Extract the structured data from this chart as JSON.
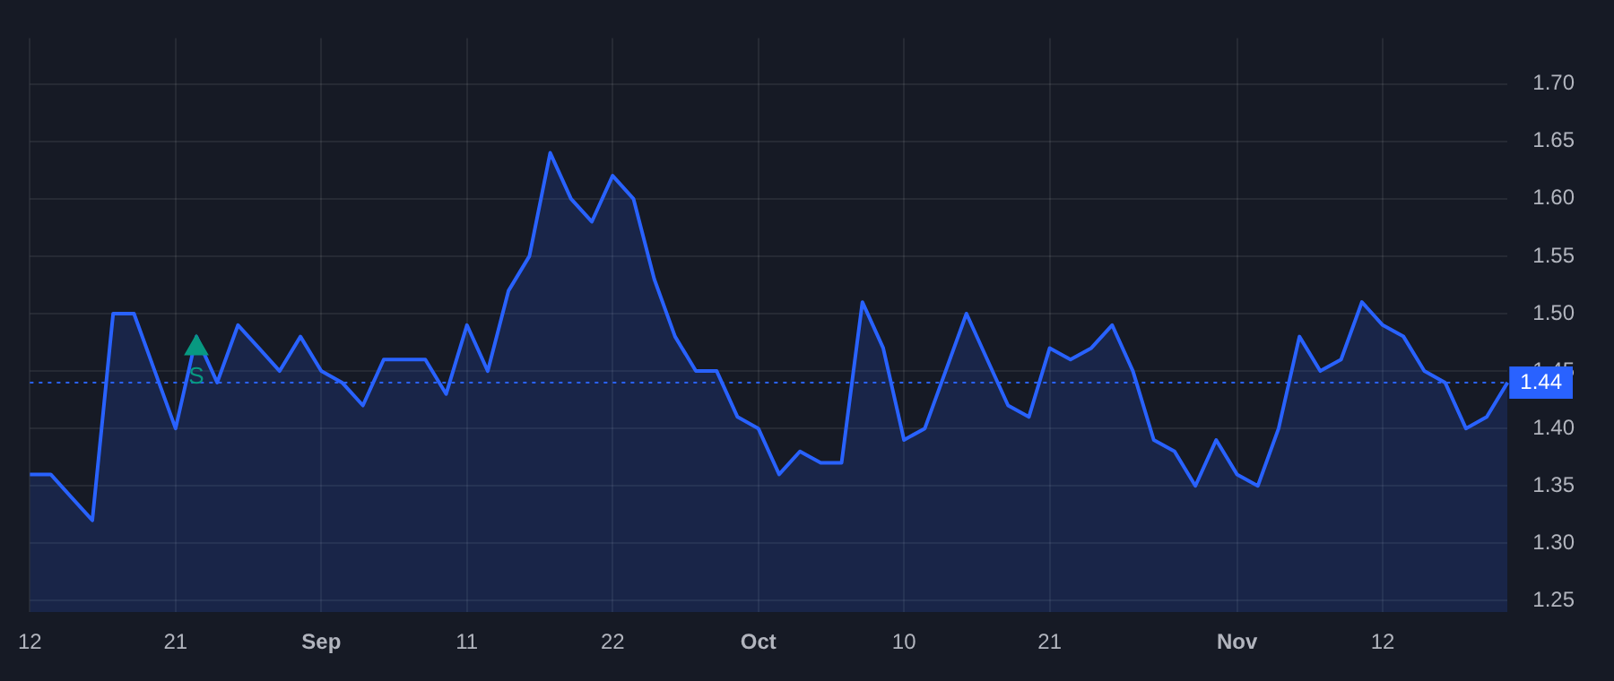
{
  "chart_data": {
    "type": "area",
    "categories": [
      "12",
      null,
      null,
      null,
      null,
      null,
      null,
      "21",
      null,
      null,
      null,
      null,
      null,
      null,
      "Sep",
      null,
      null,
      null,
      null,
      null,
      null,
      "11",
      null,
      null,
      null,
      null,
      null,
      null,
      "22",
      null,
      null,
      null,
      null,
      null,
      null,
      "Oct",
      null,
      null,
      null,
      null,
      null,
      null,
      "10",
      null,
      null,
      null,
      null,
      null,
      null,
      "21",
      null,
      null,
      null,
      null,
      null,
      null,
      null,
      null,
      "Nov",
      null,
      null,
      null,
      null,
      null,
      null,
      "12",
      null,
      null,
      null,
      null,
      null,
      null
    ],
    "series": [
      {
        "type": "area",
        "color": "#2962ff",
        "marker": "none",
        "values": [
          1.36,
          1.36,
          1.34,
          1.32,
          1.5,
          1.5,
          1.45,
          1.4,
          1.48,
          1.44,
          1.49,
          1.47,
          1.45,
          1.48,
          1.45,
          1.44,
          1.42,
          1.46,
          1.46,
          1.46,
          1.43,
          1.49,
          1.45,
          1.52,
          1.55,
          1.64,
          1.6,
          1.58,
          1.62,
          1.6,
          1.53,
          1.48,
          1.45,
          1.45,
          1.41,
          1.4,
          1.36,
          1.38,
          1.37,
          1.37,
          1.51,
          1.47,
          1.39,
          1.4,
          1.45,
          1.5,
          1.46,
          1.42,
          1.41,
          1.47,
          1.46,
          1.47,
          1.49,
          1.45,
          1.39,
          1.38,
          1.35,
          1.39,
          1.36,
          1.35,
          1.4,
          1.48,
          1.45,
          1.46,
          1.51,
          1.49,
          1.48,
          1.45,
          1.44,
          1.4,
          1.41,
          1.44
        ]
      },
      {
        "type": "scatter",
        "color": "#089981",
        "marker": "triangle",
        "values": [
          null,
          null,
          null,
          null,
          null,
          null,
          null,
          null,
          1.47,
          null,
          null,
          null,
          null,
          null,
          null,
          null,
          null,
          null,
          null,
          null,
          null,
          null,
          null,
          null,
          null,
          null,
          null,
          null,
          null,
          null,
          null,
          null,
          null,
          null,
          null,
          null,
          null,
          null,
          null,
          null,
          null,
          null,
          null,
          null,
          null,
          null,
          null,
          null,
          null,
          null,
          null,
          null,
          null,
          null,
          null,
          null,
          null,
          null,
          null,
          null,
          null,
          null,
          null,
          null,
          null,
          null,
          null,
          null,
          null,
          null,
          null,
          null
        ]
      }
    ],
    "ylim": [
      1.24,
      1.74
    ],
    "yticks": [
      1.25,
      {
        "value": 1.3,
        "label": "1.30"
      },
      1.35,
      {
        "value": 1.4,
        "label": "1.40"
      },
      1.45,
      {
        "value": 1.5,
        "label": "1.50"
      },
      1.55,
      {
        "value": 1.6,
        "label": "1.60"
      },
      1.65,
      {
        "value": 1.7,
        "label": "1.70"
      }
    ],
    "grid": true,
    "legend": false,
    "ref_lines": [
      {
        "axis": "y",
        "value": 1.44,
        "label": "1.44",
        "color": "#2962ff",
        "line_style": "dotted"
      }
    ],
    "annotations": [
      "S"
    ]
  }
}
